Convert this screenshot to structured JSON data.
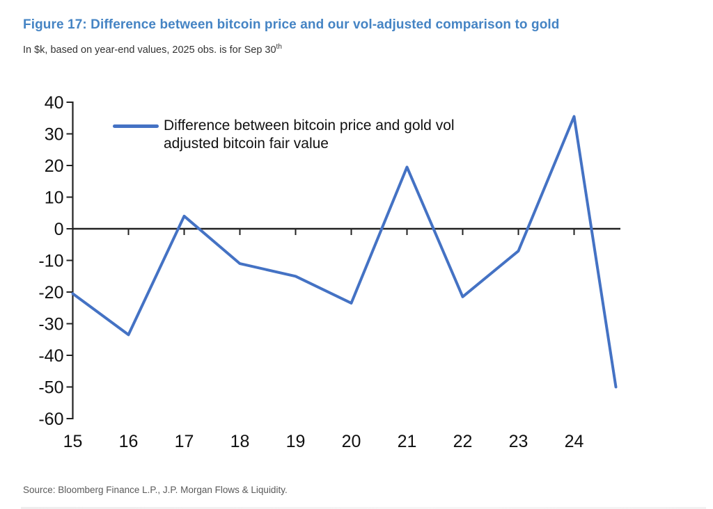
{
  "header": {
    "title": "Figure 17: Difference between bitcoin price and our vol-adjusted comparison to gold",
    "subtitle": "In $k, based on year-end values, 2025 obs. is for Sep 30",
    "subtitle_sup": "th"
  },
  "legend": {
    "lines": [
      "Difference between bitcoin price and gold vol",
      "adjusted bitcoin fair value"
    ]
  },
  "footer": {
    "source": "Source: Bloomberg Finance L.P., J.P. Morgan Flows & Liquidity."
  },
  "colors": {
    "title_text": "#4584C4",
    "series_line": "#4472C4",
    "axis": "#222222"
  },
  "chart_data": {
    "type": "line",
    "title": "Figure 17: Difference between bitcoin price and our vol-adjusted comparison to gold",
    "subtitle": "In $k, based on year-end values, 2025 obs. is for Sep 30th",
    "xlabel": "",
    "ylabel": "In $k",
    "x": [
      15,
      16,
      17,
      18,
      19,
      20,
      21,
      22,
      23,
      24,
      24.75
    ],
    "series": [
      {
        "name": "Difference between bitcoin price and gold vol adjusted bitcoin fair value",
        "values": [
          -20.5,
          -33.5,
          4,
          -11,
          -15,
          -23.5,
          19.5,
          -21.5,
          -7,
          35.5,
          -50
        ],
        "color": "#4472C4"
      }
    ],
    "note": "Last point (x = 24.75) is the 2025 observation as of Sep 30; all others are year-end values 2015-2024.",
    "x_ticks": [
      15,
      16,
      17,
      18,
      19,
      20,
      21,
      22,
      23,
      24
    ],
    "y_ticks": [
      40,
      30,
      20,
      10,
      0,
      -10,
      -20,
      -30,
      -40,
      -50,
      -60
    ],
    "xlim": [
      15,
      24.85
    ],
    "ylim": [
      -60,
      40
    ],
    "grid": false,
    "zero_line": true,
    "legend_position": "top-left-inside"
  }
}
